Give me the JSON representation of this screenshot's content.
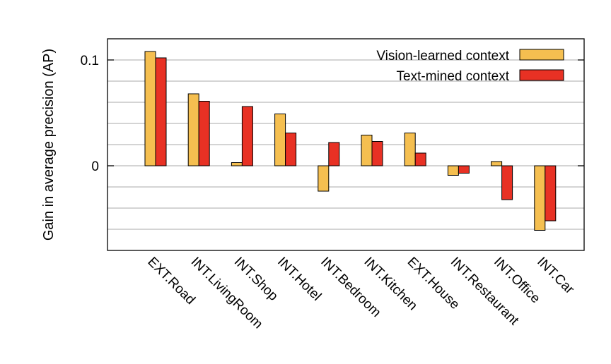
{
  "chart_data": {
    "type": "bar",
    "title": "",
    "xlabel": "",
    "ylabel": "Gain in average precision (AP)",
    "ylim": [
      -0.08,
      0.12
    ],
    "yticks": [
      {
        "value": 0.1,
        "label": "0.1"
      },
      {
        "value": 0,
        "label": "0"
      }
    ],
    "grid_y": [
      0.1,
      0.08,
      0.06,
      0.04,
      0.02,
      0,
      -0.02,
      -0.04,
      -0.06
    ],
    "grid": true,
    "legend_position": "top-right",
    "categories": [
      "EXT.Road",
      "INT.LivingRoom",
      "INT.Shop",
      "INT.Hotel",
      "INT.Bedroom",
      "INT.Kitchen",
      "EXT.House",
      "INT.Restaurant",
      "INT.Office",
      "INT.Car"
    ],
    "series": [
      {
        "name": "Vision-learned context",
        "color": "#f5bf50",
        "values": [
          0.108,
          0.068,
          0.003,
          0.049,
          -0.024,
          0.029,
          0.031,
          -0.009,
          0.004,
          -0.061
        ]
      },
      {
        "name": "Text-mined context",
        "color": "#e83124",
        "values": [
          0.102,
          0.061,
          0.056,
          0.031,
          0.022,
          0.023,
          0.012,
          -0.007,
          -0.032,
          -0.052
        ]
      }
    ]
  }
}
